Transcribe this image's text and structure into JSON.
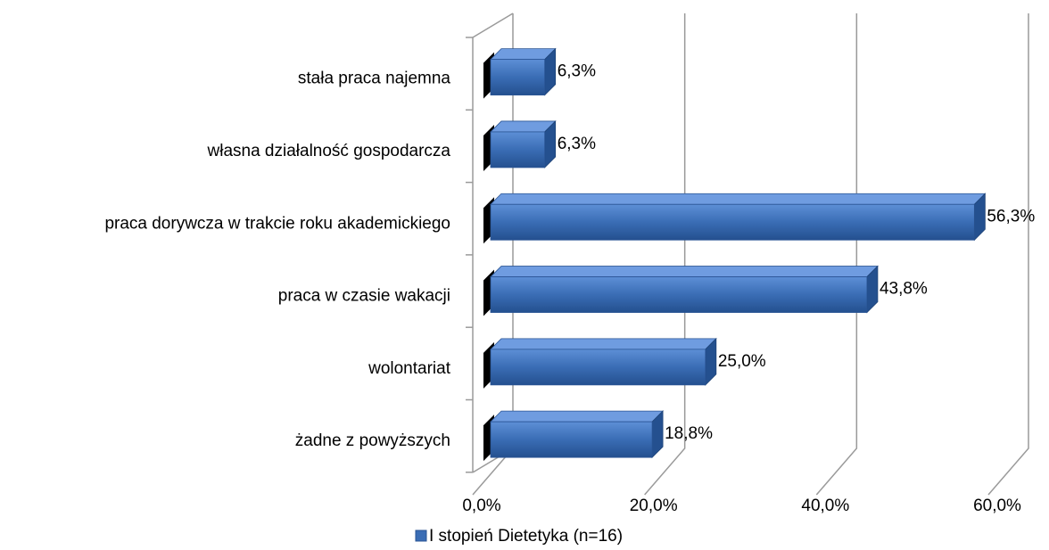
{
  "chart_data": {
    "type": "bar",
    "orientation": "horizontal",
    "categories": [
      "stała praca najemna",
      "własna działalność gospodarcza",
      "praca dorywcza w trakcie roku akademickiego",
      "praca w czasie wakacji",
      "wolontariat",
      "żadne z powyższych"
    ],
    "series": [
      {
        "name": "I stopień Dietetyka (n=16)",
        "color": "#3a6db5",
        "values": [
          6.3,
          6.3,
          56.3,
          43.8,
          25.0,
          18.8
        ],
        "value_labels": [
          "6,3%",
          "6,3%",
          "56,3%",
          "43,8%",
          "25,0%",
          "18,8%"
        ]
      }
    ],
    "xlim": [
      0,
      60
    ],
    "xticks": [
      {
        "value": 0,
        "label": "0,0%"
      },
      {
        "value": 20,
        "label": "20,0%"
      },
      {
        "value": 40,
        "label": "40,0%"
      },
      {
        "value": 60,
        "label": "60,0%"
      }
    ],
    "grid": true,
    "legend": "bottom"
  }
}
